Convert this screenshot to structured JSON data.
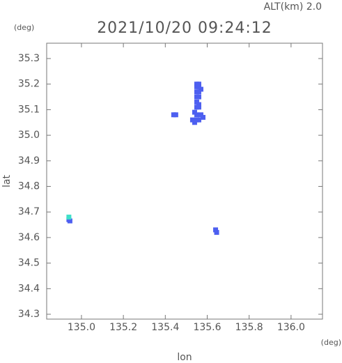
{
  "chart_data": {
    "type": "scatter",
    "title": "2021/10/20 09:24:12",
    "annotation": "ALT(km) 2.0",
    "ylabel": "lat",
    "xlabel": "lon",
    "yunit": "(deg)",
    "xunit": "(deg)",
    "xlim": [
      134.834,
      136.15
    ],
    "ylim": [
      34.281,
      35.36
    ],
    "xticks": [
      {
        "value": 135,
        "label": "135.0"
      },
      135.2,
      135.4,
      135.6,
      135.8,
      {
        "value": 136,
        "label": "136.0"
      }
    ],
    "yticks": [
      34.3,
      34.4,
      34.5,
      34.6,
      34.7,
      34.8,
      34.9,
      {
        "value": 35,
        "label": "35.0"
      },
      35.1,
      35.2,
      35.3
    ],
    "grid": false,
    "series": [
      {
        "color": "#4d5ff0",
        "x": [
          135.55,
          135.56,
          135.55,
          135.56,
          135.57,
          135.55,
          135.56,
          135.55,
          135.56,
          135.55,
          135.56,
          135.55,
          135.56,
          135.54,
          135.55,
          135.57,
          135.58,
          135.53,
          135.54,
          135.55,
          135.56,
          135.44,
          135.45,
          135.64,
          135.645,
          134.94,
          134.945
        ],
        "y": [
          35.2,
          35.2,
          35.19,
          35.19,
          35.18,
          35.17,
          35.17,
          35.15,
          35.15,
          35.13,
          35.12,
          35.11,
          35.11,
          35.09,
          35.08,
          35.08,
          35.07,
          35.06,
          35.05,
          35.06,
          35.06,
          35.08,
          35.08,
          34.63,
          34.62,
          34.67,
          34.665
        ]
      },
      {
        "color": "#3fe0c8",
        "x": [
          134.94
        ],
        "y": [
          34.68
        ]
      }
    ]
  }
}
